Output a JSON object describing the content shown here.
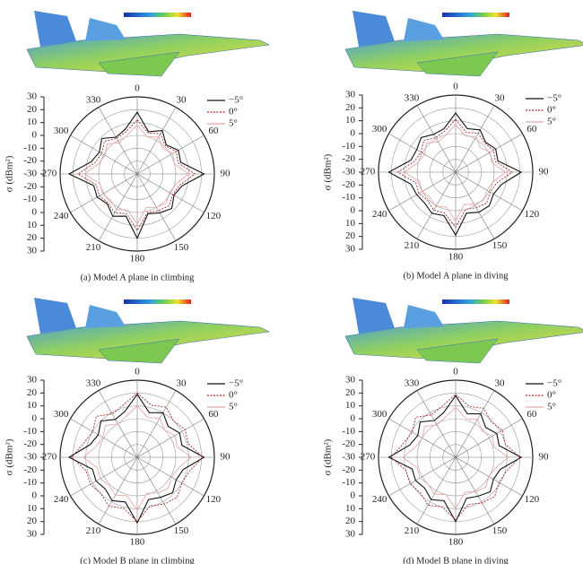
{
  "chart_data": [
    {
      "type": "polar",
      "caption": "(a) Model A plane in climbing",
      "y_label": "σ (dBm²)",
      "x": [
        0,
        15,
        30,
        45,
        60,
        75,
        90,
        105,
        120,
        135,
        150,
        165,
        180,
        195,
        210,
        225,
        240,
        255,
        270,
        285,
        300,
        315,
        330,
        345
      ],
      "xticks": [
        0,
        30,
        60,
        90,
        120,
        150,
        180,
        210,
        240,
        270,
        300,
        330
      ],
      "rlim": [
        -30,
        30
      ],
      "rticks": [
        -30,
        -20,
        -10,
        0,
        10,
        20,
        30
      ],
      "series": [
        {
          "name": "−5°",
          "color": "#111111",
          "values": [
            18,
            4,
            9,
            2,
            7,
            5,
            22,
            6,
            3,
            8,
            5,
            2,
            20,
            4,
            8,
            3,
            6,
            5,
            23,
            7,
            4,
            9,
            3,
            6
          ]
        },
        {
          "name": "0°",
          "color": "#a52a2a",
          "values": [
            12,
            3,
            6,
            1,
            5,
            3,
            15,
            4,
            2,
            5,
            3,
            1,
            14,
            2,
            5,
            2,
            4,
            3,
            16,
            4,
            2,
            6,
            2,
            4
          ]
        },
        {
          "name": "5°",
          "color": "#e7a8a8",
          "values": [
            8,
            0,
            3,
            -2,
            2,
            0,
            10,
            1,
            -1,
            2,
            0,
            -3,
            9,
            -1,
            2,
            -1,
            1,
            0,
            11,
            1,
            -1,
            3,
            -2,
            1
          ]
        }
      ]
    },
    {
      "type": "polar",
      "caption": "(b) Model A plane in diving",
      "y_label": "σ (dBm²)",
      "x": [
        0,
        15,
        30,
        45,
        60,
        75,
        90,
        105,
        120,
        135,
        150,
        165,
        180,
        195,
        210,
        225,
        240,
        255,
        270,
        285,
        300,
        315,
        330,
        345
      ],
      "xticks": [
        0,
        30,
        60,
        90,
        120,
        150,
        180,
        210,
        240,
        270,
        300,
        330
      ],
      "rlim": [
        -30,
        30
      ],
      "rticks": [
        -30,
        -20,
        -10,
        0,
        10,
        20,
        30
      ],
      "series": [
        {
          "name": "−5°",
          "color": "#111111",
          "values": [
            16,
            5,
            8,
            3,
            6,
            4,
            21,
            7,
            4,
            7,
            6,
            3,
            19,
            5,
            7,
            4,
            5,
            6,
            22,
            6,
            5,
            8,
            4,
            5
          ]
        },
        {
          "name": "0°",
          "color": "#a52a2a",
          "values": [
            11,
            2,
            5,
            2,
            4,
            2,
            14,
            3,
            1,
            4,
            2,
            0,
            13,
            3,
            4,
            1,
            3,
            2,
            15,
            3,
            1,
            5,
            1,
            3
          ]
        },
        {
          "name": "5°",
          "color": "#e7a8a8",
          "values": [
            7,
            -1,
            2,
            -3,
            1,
            -1,
            9,
            0,
            -2,
            1,
            -1,
            -4,
            8,
            -2,
            1,
            -2,
            0,
            -1,
            10,
            0,
            -2,
            2,
            -3,
            0
          ]
        }
      ]
    },
    {
      "type": "polar",
      "caption": "(c) Model B plane in climbing",
      "y_label": "σ (dBm²)",
      "x": [
        0,
        15,
        30,
        45,
        60,
        75,
        90,
        105,
        120,
        135,
        150,
        165,
        180,
        195,
        210,
        225,
        240,
        255,
        270,
        285,
        300,
        315,
        330,
        345
      ],
      "xticks": [
        0,
        30,
        60,
        90,
        120,
        150,
        180,
        210,
        240,
        270,
        300,
        330
      ],
      "rlim": [
        -30,
        30
      ],
      "rticks": [
        -30,
        -20,
        -10,
        0,
        10,
        20,
        30
      ],
      "series": [
        {
          "name": "−5°",
          "color": "#111111",
          "values": [
            19,
            6,
            10,
            4,
            8,
            6,
            22,
            7,
            5,
            9,
            6,
            4,
            21,
            6,
            9,
            5,
            7,
            6,
            23,
            8,
            5,
            10,
            4,
            7
          ]
        },
        {
          "name": "0°",
          "color": "#a52a2a",
          "values": [
            20,
            12,
            15,
            10,
            13,
            11,
            21,
            12,
            10,
            14,
            12,
            9,
            20,
            11,
            14,
            10,
            12,
            11,
            21,
            13,
            10,
            15,
            9,
            12
          ]
        },
        {
          "name": "5°",
          "color": "#e7a8a8",
          "values": [
            10,
            2,
            5,
            0,
            4,
            2,
            12,
            3,
            1,
            4,
            2,
            -1,
            11,
            1,
            4,
            1,
            3,
            2,
            12,
            3,
            1,
            5,
            0,
            3
          ]
        }
      ]
    },
    {
      "type": "polar",
      "caption": "(d) Model B plane in diving",
      "y_label": "σ (dBm²)",
      "x": [
        0,
        15,
        30,
        45,
        60,
        75,
        90,
        105,
        120,
        135,
        150,
        165,
        180,
        195,
        210,
        225,
        240,
        255,
        270,
        285,
        300,
        315,
        330,
        345
      ],
      "xticks": [
        0,
        30,
        60,
        90,
        120,
        150,
        180,
        210,
        240,
        270,
        300,
        330
      ],
      "rlim": [
        -30,
        30
      ],
      "rticks": [
        -30,
        -20,
        -10,
        0,
        10,
        20,
        30
      ],
      "series": [
        {
          "name": "−5°",
          "color": "#111111",
          "values": [
            18,
            5,
            9,
            3,
            7,
            5,
            21,
            6,
            4,
            8,
            5,
            3,
            20,
            5,
            8,
            4,
            6,
            5,
            22,
            7,
            4,
            9,
            3,
            6
          ]
        },
        {
          "name": "0°",
          "color": "#a52a2a",
          "values": [
            19,
            11,
            14,
            9,
            12,
            10,
            20,
            11,
            9,
            13,
            11,
            8,
            19,
            10,
            13,
            9,
            11,
            10,
            20,
            12,
            9,
            14,
            8,
            11
          ]
        },
        {
          "name": "5°",
          "color": "#e7a8a8",
          "values": [
            9,
            1,
            4,
            -1,
            3,
            1,
            11,
            2,
            0,
            3,
            1,
            -2,
            10,
            0,
            3,
            0,
            2,
            1,
            11,
            2,
            0,
            4,
            -1,
            2
          ]
        }
      ]
    }
  ]
}
